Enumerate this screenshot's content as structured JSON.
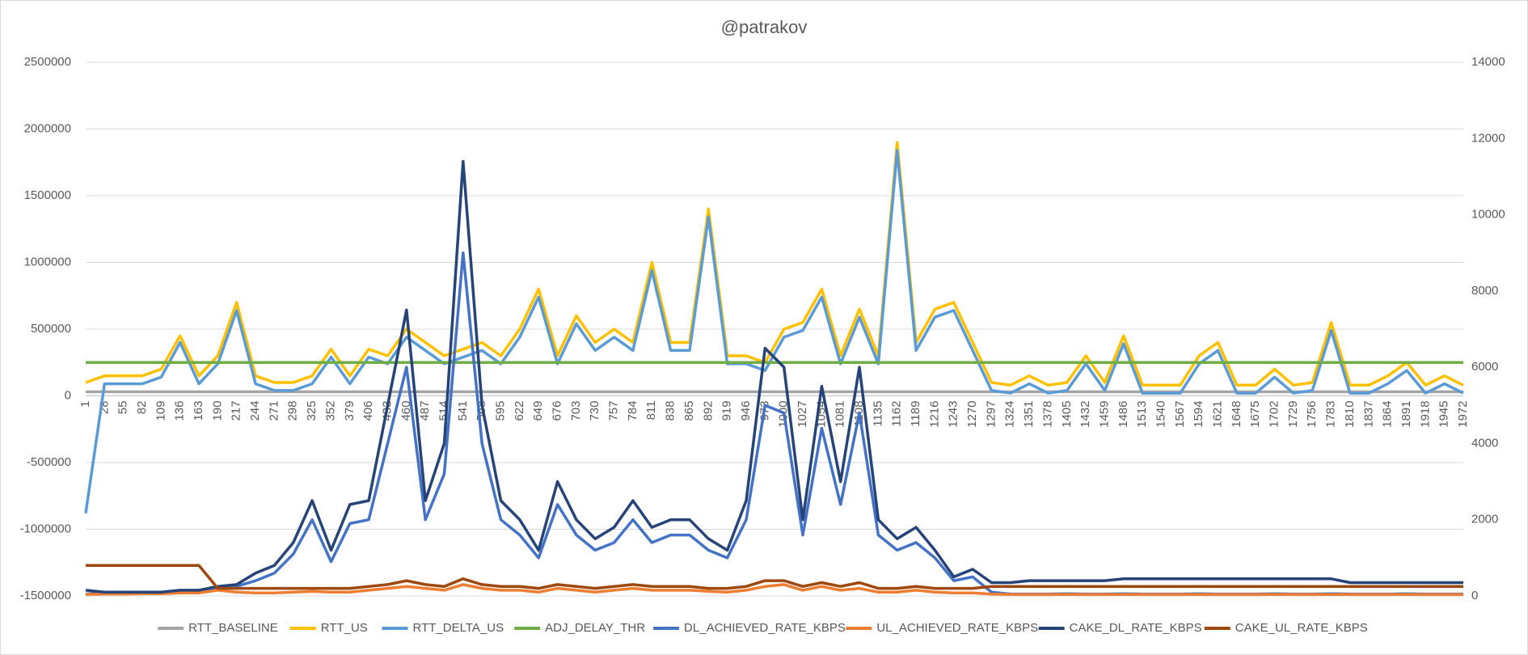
{
  "chart_data": {
    "type": "line",
    "title": "@patrakov",
    "categories": [
      "1",
      "28",
      "55",
      "82",
      "109",
      "136",
      "163",
      "190",
      "217",
      "244",
      "271",
      "298",
      "325",
      "352",
      "379",
      "406",
      "433",
      "460",
      "487",
      "514",
      "541",
      "568",
      "595",
      "622",
      "649",
      "676",
      "703",
      "730",
      "757",
      "784",
      "811",
      "838",
      "865",
      "892",
      "919",
      "946",
      "973",
      "1000",
      "1027",
      "1054",
      "1081",
      "1108",
      "1135",
      "1162",
      "1189",
      "1216",
      "1243",
      "1270",
      "1297",
      "1324",
      "1351",
      "1378",
      "1405",
      "1432",
      "1459",
      "1486",
      "1513",
      "1540",
      "1567",
      "1594",
      "1621",
      "1648",
      "1675",
      "1702",
      "1729",
      "1756",
      "1783",
      "1810",
      "1837",
      "1864",
      "1891",
      "1918",
      "1945",
      "1972"
    ],
    "ylim": [
      -1500000,
      2500000
    ],
    "yticks": [
      -1500000,
      -1000000,
      -500000,
      0,
      500000,
      1000000,
      1500000,
      2000000,
      2500000
    ],
    "y2lim": [
      0,
      14000
    ],
    "y2ticks": [
      0,
      2000,
      4000,
      6000,
      8000,
      10000,
      12000,
      14000
    ],
    "grid": true,
    "legend": "bottom",
    "series": [
      {
        "name": "RTT_BASELINE",
        "color": "#a5a5a5",
        "values": [
          30000,
          30000,
          30000,
          30000,
          30000,
          30000,
          30000,
          30000,
          30000,
          30000,
          30000,
          30000,
          30000,
          30000,
          30000,
          30000,
          30000,
          30000,
          30000,
          30000,
          30000,
          30000,
          30000,
          30000,
          30000,
          30000,
          30000,
          30000,
          30000,
          30000,
          30000,
          30000,
          30000,
          30000,
          30000,
          30000,
          30000,
          30000,
          30000,
          30000,
          30000,
          30000,
          30000,
          30000,
          30000,
          30000,
          30000,
          30000,
          30000,
          30000,
          30000,
          30000,
          30000,
          30000,
          30000,
          30000,
          30000,
          30000,
          30000,
          30000,
          30000,
          30000,
          30000,
          30000,
          30000,
          30000,
          30000,
          30000,
          30000,
          30000,
          30000,
          30000,
          30000,
          30000
        ]
      },
      {
        "name": "RTT_US",
        "color": "#ffc000",
        "values": [
          100000,
          150000,
          150000,
          150000,
          200000,
          450000,
          150000,
          300000,
          700000,
          150000,
          100000,
          100000,
          150000,
          350000,
          150000,
          350000,
          300000,
          500000,
          400000,
          300000,
          350000,
          400000,
          300000,
          500000,
          800000,
          300000,
          600000,
          400000,
          500000,
          400000,
          1000000,
          400000,
          400000,
          1400000,
          300000,
          300000,
          250000,
          500000,
          550000,
          800000,
          300000,
          650000,
          300000,
          1900000,
          400000,
          650000,
          700000,
          400000,
          100000,
          80000,
          150000,
          80000,
          100000,
          300000,
          100000,
          450000,
          80000,
          80000,
          80000,
          300000,
          400000,
          80000,
          80000,
          200000,
          80000,
          100000,
          550000,
          80000,
          80000,
          150000,
          250000,
          80000,
          150000,
          80000
        ]
      },
      {
        "name": "RTT_DELTA_US",
        "color": "#5b9bd5",
        "values": [
          -880000,
          90000,
          90000,
          90000,
          140000,
          400000,
          90000,
          240000,
          640000,
          90000,
          40000,
          40000,
          90000,
          290000,
          90000,
          290000,
          240000,
          440000,
          340000,
          240000,
          290000,
          340000,
          240000,
          440000,
          740000,
          240000,
          540000,
          340000,
          440000,
          340000,
          940000,
          340000,
          340000,
          1340000,
          240000,
          240000,
          190000,
          440000,
          490000,
          740000,
          240000,
          590000,
          240000,
          1840000,
          340000,
          590000,
          640000,
          340000,
          40000,
          20000,
          90000,
          20000,
          40000,
          240000,
          40000,
          390000,
          20000,
          20000,
          20000,
          240000,
          340000,
          20000,
          20000,
          140000,
          20000,
          40000,
          490000,
          20000,
          20000,
          90000,
          190000,
          20000,
          90000,
          20000
        ]
      },
      {
        "name": "ADJ_DELAY_THR",
        "color": "#70ad47",
        "values": [
          250000,
          250000,
          250000,
          250000,
          250000,
          250000,
          250000,
          250000,
          250000,
          250000,
          250000,
          250000,
          250000,
          250000,
          250000,
          250000,
          250000,
          250000,
          250000,
          250000,
          250000,
          250000,
          250000,
          250000,
          250000,
          250000,
          250000,
          250000,
          250000,
          250000,
          250000,
          250000,
          250000,
          250000,
          250000,
          250000,
          250000,
          250000,
          250000,
          250000,
          250000,
          250000,
          250000,
          250000,
          250000,
          250000,
          250000,
          250000,
          250000,
          250000,
          250000,
          250000,
          250000,
          250000,
          250000,
          250000,
          250000,
          250000,
          250000,
          250000,
          250000,
          250000,
          250000,
          250000,
          250000,
          250000,
          250000,
          250000,
          250000,
          250000,
          250000,
          250000,
          250000,
          250000
        ]
      },
      {
        "name": "DL_ACHIEVED_RATE_KBPS",
        "color": "#4472c4",
        "axis": "y2",
        "values": [
          50,
          80,
          60,
          70,
          80,
          100,
          120,
          200,
          250,
          400,
          600,
          1100,
          2000,
          900,
          1900,
          2000,
          4000,
          6000,
          2000,
          3200,
          9000,
          4000,
          2000,
          1600,
          1000,
          2400,
          1600,
          1200,
          1400,
          2000,
          1400,
          1600,
          1600,
          1200,
          1000,
          2000,
          5000,
          4800,
          1600,
          4400,
          2400,
          4800,
          1600,
          1200,
          1400,
          1000,
          400,
          500,
          100,
          50,
          50,
          50,
          60,
          50,
          50,
          60,
          50,
          50,
          50,
          60,
          50,
          50,
          50,
          60,
          50,
          50,
          60,
          50,
          50,
          50,
          60,
          50,
          50,
          50
        ]
      },
      {
        "name": "UL_ACHIEVED_RATE_KBPS",
        "color": "#ed7d31",
        "axis": "y2",
        "values": [
          40,
          50,
          50,
          60,
          60,
          80,
          80,
          150,
          100,
          80,
          80,
          100,
          120,
          100,
          100,
          150,
          200,
          250,
          200,
          150,
          300,
          200,
          150,
          150,
          100,
          200,
          150,
          100,
          150,
          200,
          150,
          150,
          150,
          120,
          100,
          150,
          250,
          300,
          150,
          250,
          150,
          200,
          100,
          100,
          150,
          100,
          80,
          80,
          50,
          40,
          40,
          40,
          40,
          40,
          40,
          40,
          40,
          40,
          40,
          40,
          40,
          40,
          40,
          40,
          40,
          40,
          40,
          40,
          40,
          40,
          40,
          40,
          40,
          40
        ]
      },
      {
        "name": "CAKE_DL_RATE_KBPS",
        "color": "#264478",
        "axis": "y2",
        "values": [
          150,
          100,
          100,
          100,
          100,
          150,
          150,
          250,
          300,
          600,
          800,
          1400,
          2500,
          1200,
          2400,
          2500,
          5000,
          7500,
          2500,
          4000,
          11400,
          5000,
          2500,
          2000,
          1200,
          3000,
          2000,
          1500,
          1800,
          2500,
          1800,
          2000,
          2000,
          1500,
          1200,
          2500,
          6500,
          6000,
          2000,
          5500,
          3000,
          6000,
          2000,
          1500,
          1800,
          1200,
          500,
          700,
          350,
          350,
          400,
          400,
          400,
          400,
          400,
          450,
          450,
          450,
          450,
          450,
          450,
          450,
          450,
          450,
          450,
          450,
          450,
          350,
          350,
          350,
          350,
          350,
          350,
          350
        ]
      },
      {
        "name": "CAKE_UL_RATE_KBPS",
        "color": "#9e480e",
        "axis": "y2",
        "values": [
          800,
          800,
          800,
          800,
          800,
          800,
          800,
          200,
          200,
          200,
          200,
          200,
          200,
          200,
          200,
          250,
          300,
          400,
          300,
          250,
          450,
          300,
          250,
          250,
          200,
          300,
          250,
          200,
          250,
          300,
          250,
          250,
          250,
          200,
          200,
          250,
          400,
          400,
          250,
          350,
          250,
          350,
          200,
          200,
          250,
          200,
          200,
          200,
          250,
          250,
          250,
          250,
          250,
          250,
          250,
          250,
          250,
          250,
          250,
          250,
          250,
          250,
          250,
          250,
          250,
          250,
          250,
          250,
          250,
          250,
          250,
          250,
          250,
          250
        ]
      }
    ]
  }
}
